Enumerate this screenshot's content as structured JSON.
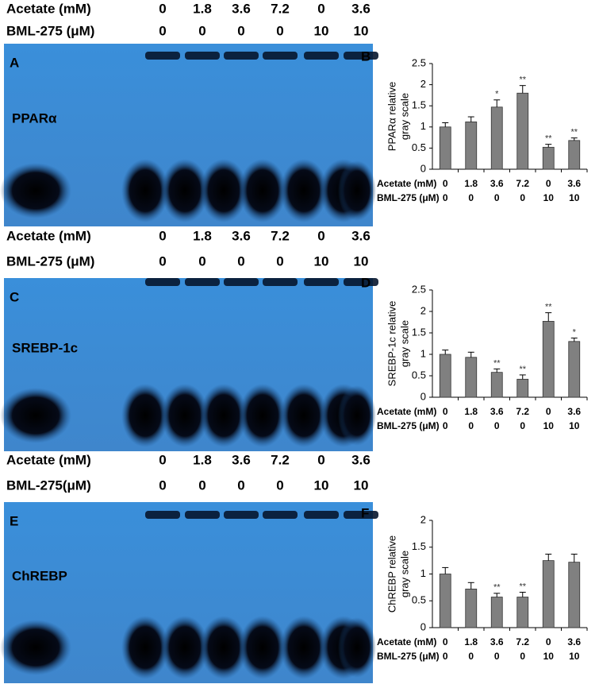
{
  "gels": [
    {
      "panel": "A",
      "label": "PPARα",
      "header": [
        {
          "label": "Acetate (mM)",
          "values": [
            "0",
            "1.8",
            "3.6",
            "7.2",
            "0",
            "3.6"
          ]
        },
        {
          "label": "BML-275 (μM)",
          "values": [
            "0",
            "0",
            "0",
            "0",
            "10",
            "10"
          ]
        }
      ]
    },
    {
      "panel": "C",
      "label": "SREBP-1c",
      "header": [
        {
          "label": "Acetate (mM)",
          "values": [
            "0",
            "1.8",
            "3.6",
            "7.2",
            "0",
            "3.6"
          ]
        },
        {
          "label": "BML-275 (μM)",
          "values": [
            "0",
            "0",
            "0",
            "0",
            "10",
            "10"
          ]
        }
      ]
    },
    {
      "panel": "E",
      "label": "ChREBP",
      "header": [
        {
          "label": "Acetate (mM)",
          "values": [
            "0",
            "1.8",
            "3.6",
            "7.2",
            "0",
            "3.6"
          ]
        },
        {
          "label": "BML-275(μM)",
          "values": [
            "0",
            "0",
            "0",
            "0",
            "10",
            "10"
          ]
        }
      ]
    }
  ],
  "chart_data": [
    {
      "type": "bar",
      "panel": "B",
      "ylabel": [
        "PPARα relative",
        "gray scale"
      ],
      "color": "#808080",
      "values": [
        1.0,
        1.12,
        1.47,
        1.8,
        0.52,
        0.68
      ],
      "errors": [
        0.1,
        0.12,
        0.17,
        0.18,
        0.07,
        0.06
      ],
      "significance": [
        null,
        null,
        "*",
        "**",
        "**",
        "**"
      ],
      "ylim": [
        0,
        2.5
      ],
      "yticks": [
        0,
        0.5,
        1,
        1.5,
        2,
        2.5
      ],
      "category_rows": [
        {
          "label": "Acetate (mM)",
          "values": [
            "0",
            "1.8",
            "3.6",
            "7.2",
            "0",
            "3.6"
          ]
        },
        {
          "label": "BML-275 (μM)",
          "values": [
            "0",
            "0",
            "0",
            "0",
            "10",
            "10"
          ]
        }
      ]
    },
    {
      "type": "bar",
      "panel": "D",
      "ylabel": [
        "SREBP-1c relative",
        "gray scale"
      ],
      "color": "#808080",
      "values": [
        1.0,
        0.93,
        0.58,
        0.42,
        1.77,
        1.3
      ],
      "errors": [
        0.1,
        0.12,
        0.08,
        0.1,
        0.2,
        0.08
      ],
      "significance": [
        null,
        null,
        "**",
        "**",
        "**",
        "*"
      ],
      "ylim": [
        0,
        2.5
      ],
      "yticks": [
        0,
        0.5,
        1,
        1.5,
        2,
        2.5
      ],
      "category_rows": [
        {
          "label": "Acetate (mM)",
          "values": [
            "0",
            "1.8",
            "3.6",
            "7.2",
            "0",
            "3.6"
          ]
        },
        {
          "label": "BML-275 (μM)",
          "values": [
            "0",
            "0",
            "0",
            "0",
            "10",
            "10"
          ]
        }
      ]
    },
    {
      "type": "bar",
      "panel": "F",
      "ylabel": [
        "ChREBP relative",
        "gray scale"
      ],
      "color": "#808080",
      "values": [
        1.0,
        0.72,
        0.57,
        0.57,
        1.25,
        1.22
      ],
      "errors": [
        0.12,
        0.12,
        0.07,
        0.09,
        0.12,
        0.15
      ],
      "significance": [
        null,
        null,
        "**",
        "**",
        null,
        null
      ],
      "ylim": [
        0,
        2
      ],
      "yticks": [
        0,
        0.5,
        1,
        1.5,
        2
      ],
      "category_rows": [
        {
          "label": "Acetate (mM)",
          "values": [
            "0",
            "1.8",
            "3.6",
            "7.2",
            "0",
            "3.6"
          ]
        },
        {
          "label": "BML-275 (μM)",
          "values": [
            "0",
            "0",
            "0",
            "0",
            "10",
            "10"
          ]
        }
      ]
    }
  ]
}
